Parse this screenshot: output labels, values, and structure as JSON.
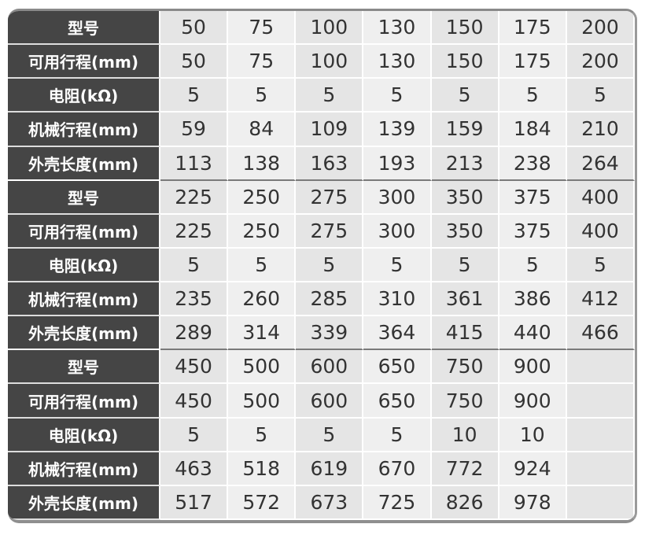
{
  "table": {
    "groups": [
      {
        "rows": [
          {
            "label": "型号",
            "values": [
              "50",
              "75",
              "100",
              "130",
              "150",
              "175",
              "200"
            ]
          },
          {
            "label": "可用行程(mm)",
            "values": [
              "50",
              "75",
              "100",
              "130",
              "150",
              "175",
              "200"
            ]
          },
          {
            "label": "电阻(kΩ)",
            "values": [
              "5",
              "5",
              "5",
              "5",
              "5",
              "5",
              "5"
            ]
          },
          {
            "label": "机械行程(mm)",
            "values": [
              "59",
              "84",
              "109",
              "139",
              "159",
              "184",
              "210"
            ]
          },
          {
            "label": "外壳长度(mm)",
            "values": [
              "113",
              "138",
              "163",
              "193",
              "213",
              "238",
              "264"
            ]
          }
        ]
      },
      {
        "rows": [
          {
            "label": "型号",
            "values": [
              "225",
              "250",
              "275",
              "300",
              "350",
              "375",
              "400"
            ]
          },
          {
            "label": "可用行程(mm)",
            "values": [
              "225",
              "250",
              "275",
              "300",
              "350",
              "375",
              "400"
            ]
          },
          {
            "label": "电阻(kΩ)",
            "values": [
              "5",
              "5",
              "5",
              "5",
              "5",
              "5",
              "5"
            ]
          },
          {
            "label": "机械行程(mm)",
            "values": [
              "235",
              "260",
              "285",
              "310",
              "361",
              "386",
              "412"
            ]
          },
          {
            "label": "外壳长度(mm)",
            "values": [
              "289",
              "314",
              "339",
              "364",
              "415",
              "440",
              "466"
            ]
          }
        ]
      },
      {
        "rows": [
          {
            "label": "型号",
            "values": [
              "450",
              "500",
              "600",
              "650",
              "750",
              "900",
              ""
            ]
          },
          {
            "label": "可用行程(mm)",
            "values": [
              "450",
              "500",
              "600",
              "650",
              "750",
              "900",
              ""
            ]
          },
          {
            "label": "电阻(kΩ)",
            "values": [
              "5",
              "5",
              "5",
              "5",
              "10",
              "10",
              ""
            ]
          },
          {
            "label": "机械行程(mm)",
            "values": [
              "463",
              "518",
              "619",
              "670",
              "772",
              "924",
              ""
            ]
          },
          {
            "label": "外壳长度(mm)",
            "values": [
              "517",
              "572",
              "673",
              "725",
              "826",
              "978",
              ""
            ]
          }
        ]
      }
    ]
  }
}
